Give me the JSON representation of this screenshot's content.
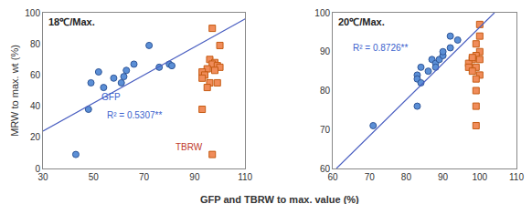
{
  "chart_data": {
    "type": "scatter",
    "xlabel": "GFP and TBRW to max. value (%)",
    "ylabel": "MRW to max. wt (%)",
    "grid": false,
    "panels": [
      {
        "title": "18℃/Max.",
        "xlim": [
          30,
          110
        ],
        "xticks": [
          30,
          50,
          70,
          90,
          110
        ],
        "ylim": [
          0,
          100
        ],
        "yticks": [
          0,
          20,
          40,
          60,
          80,
          100
        ],
        "series": [
          {
            "name": "GFP",
            "color": "#5b8fd6",
            "marker": "circle",
            "x": [
              43,
              48,
              49,
              52,
              54,
              58,
              61,
              62,
              63,
              66,
              72,
              76,
              80,
              81
            ],
            "y": [
              9,
              38,
              55,
              62,
              52,
              58,
              55,
              59,
              63,
              67,
              79,
              65,
              67,
              66
            ]
          },
          {
            "name": "TBRW",
            "color": "#f08c5a",
            "marker": "square",
            "x": [
              97,
              100,
              96,
              98,
              97,
              99,
              100,
              95,
              93,
              94,
              98,
              93,
              96,
              99,
              95,
              93,
              97
            ],
            "y": [
              90,
              79,
              70,
              68,
              67,
              66,
              65,
              64,
              62,
              60,
              63,
              58,
              55,
              55,
              52,
              38,
              9
            ]
          }
        ],
        "trend": {
          "color": "#4a5fc1",
          "x": [
            30,
            110
          ],
          "y": [
            24,
            96
          ]
        },
        "annotations": [
          {
            "text": "GFP",
            "x": 57,
            "y": 46,
            "color": "#3a5fcd"
          },
          {
            "text": "R² = 0.5307**",
            "x": 66,
            "y": 34,
            "color": "#3a5fcd"
          },
          {
            "text": "TBRW",
            "x": 88,
            "y": 14,
            "color": "#c0392b"
          }
        ]
      },
      {
        "title": "20℃/Max.",
        "xlim": [
          60,
          110
        ],
        "xticks": [
          60,
          70,
          80,
          90,
          100,
          110
        ],
        "ylim": [
          60,
          100
        ],
        "yticks": [
          60,
          70,
          80,
          90,
          100
        ],
        "series": [
          {
            "name": "GFP",
            "color": "#5b8fd6",
            "marker": "circle",
            "x": [
              71,
              83,
              83,
              83,
              84,
              84,
              86,
              87,
              88,
              88,
              89,
              90,
              90,
              92,
              92,
              94
            ],
            "y": [
              71,
              76,
              84,
              83,
              82,
              86,
              85,
              88,
              87,
              86,
              88,
              89,
              90,
              91,
              94,
              93
            ]
          },
          {
            "name": "TBRW",
            "color": "#f08c5a",
            "marker": "square",
            "x": [
              100,
              100,
              99,
              100,
              99,
              98,
              97,
              97,
              99,
              98,
              100,
              99,
              99,
              99,
              99,
              100,
              98
            ],
            "y": [
              97,
              94,
              92,
              90,
              89,
              88,
              87,
              86,
              86,
              85,
              84,
              83,
              80,
              76,
              71,
              88,
              88.5
            ]
          }
        ],
        "trend": {
          "color": "#4a5fc1",
          "x": [
            61,
            104
          ],
          "y": [
            60,
            100
          ]
        },
        "annotations": [
          {
            "text": "R² = 0.8726**",
            "x": 73,
            "y": 91,
            "color": "#3a5fcd"
          }
        ]
      }
    ]
  }
}
